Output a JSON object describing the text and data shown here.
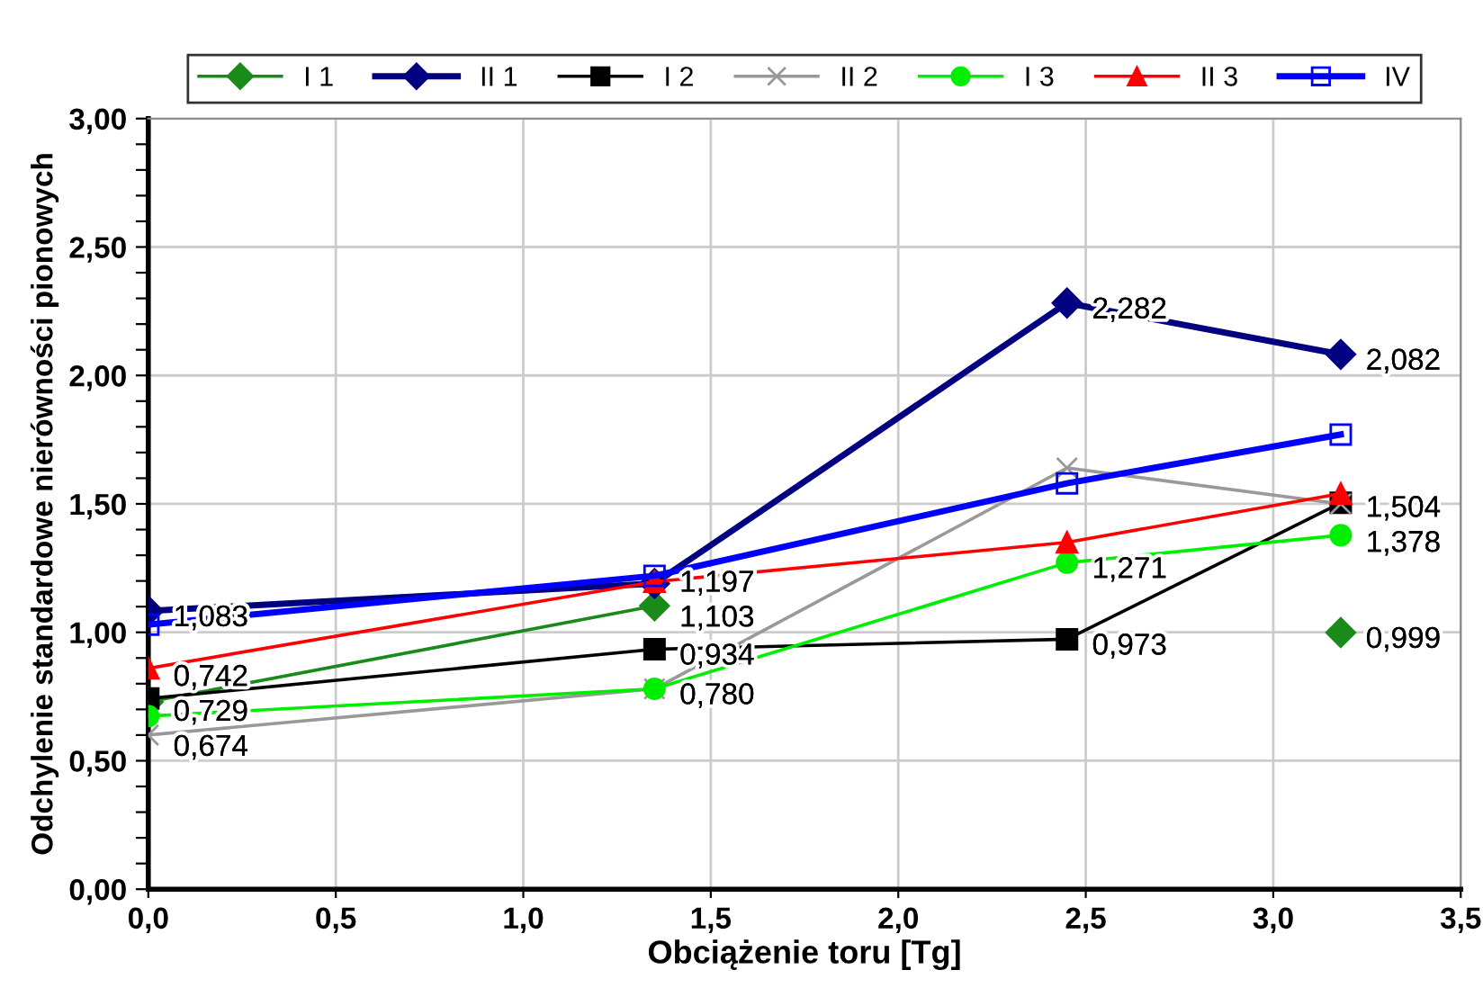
{
  "chart_data": {
    "type": "line",
    "xlabel": "Obciążenie toru [Tg]",
    "ylabel": "Odchylenie standardowe nierówności pionowych",
    "x": [
      0,
      1.35,
      2.45,
      3.18
    ],
    "xlim": [
      0,
      3.5
    ],
    "xticks": [
      {
        "value": 0,
        "label": "0,0"
      },
      {
        "value": 0.5,
        "label": "0,5"
      },
      {
        "value": 1,
        "label": "1,0"
      },
      {
        "value": 1.5,
        "label": "1,5"
      },
      {
        "value": 2,
        "label": "2,0"
      },
      {
        "value": 2.5,
        "label": "2,5"
      },
      {
        "value": 3,
        "label": "3,0"
      },
      {
        "value": 3.5,
        "label": "3,5"
      }
    ],
    "ylim": [
      0,
      3
    ],
    "yticks": [
      {
        "value": 0,
        "label": "0,00"
      },
      {
        "value": 0.1,
        "label": null
      },
      {
        "value": 0.2,
        "label": null
      },
      {
        "value": 0.3,
        "label": null
      },
      {
        "value": 0.4,
        "label": null
      },
      {
        "value": 0.5,
        "label": "0,50"
      },
      {
        "value": 0.6,
        "label": null
      },
      {
        "value": 0.7,
        "label": null
      },
      {
        "value": 0.8,
        "label": null
      },
      {
        "value": 0.9,
        "label": null
      },
      {
        "value": 1,
        "label": "1,00"
      },
      {
        "value": 1.1,
        "label": null
      },
      {
        "value": 1.2,
        "label": null
      },
      {
        "value": 1.3,
        "label": null
      },
      {
        "value": 1.4,
        "label": null
      },
      {
        "value": 1.5,
        "label": "1,50"
      },
      {
        "value": 1.6,
        "label": null
      },
      {
        "value": 1.7,
        "label": null
      },
      {
        "value": 1.8,
        "label": null
      },
      {
        "value": 1.9,
        "label": null
      },
      {
        "value": 2,
        "label": "2,00"
      },
      {
        "value": 2.1,
        "label": null
      },
      {
        "value": 2.2,
        "label": null
      },
      {
        "value": 2.3,
        "label": null
      },
      {
        "value": 2.4,
        "label": null
      },
      {
        "value": 2.5,
        "label": "2,50"
      },
      {
        "value": 2.6,
        "label": null
      },
      {
        "value": 2.7,
        "label": null
      },
      {
        "value": 2.8,
        "label": null
      },
      {
        "value": 2.9,
        "label": null
      },
      {
        "value": 3,
        "label": "3,00"
      }
    ],
    "grid": true,
    "legend": "top",
    "series": [
      {
        "name": "I 1",
        "color": "#1a8a1a",
        "marker": "diamond",
        "values": [
          0.729,
          1.103,
          null,
          0.999
        ],
        "value_labels": [
          "0,729",
          "1,103",
          null,
          "0,999"
        ]
      },
      {
        "name": "II 1",
        "color": "#000080",
        "marker": "diamond",
        "values": [
          1.083,
          1.19,
          2.282,
          2.082
        ],
        "value_labels": [
          "1,083",
          null,
          "2,282",
          "2,082"
        ]
      },
      {
        "name": "I 2",
        "color": "#000000",
        "marker": "square",
        "values": [
          0.742,
          0.934,
          0.973,
          1.504
        ],
        "value_labels": [
          "0,742",
          "0,934",
          "0,973",
          "1,504"
        ]
      },
      {
        "name": "II 2",
        "color": "#999999",
        "marker": "cross",
        "values": [
          0.6,
          0.78,
          1.64,
          1.5
        ]
      },
      {
        "name": "I 3",
        "color": "#00ee00",
        "marker": "circle",
        "values": [
          0.674,
          0.78,
          1.271,
          1.378
        ],
        "value_labels": [
          "0,674",
          "0,780",
          "1,271",
          "1,378"
        ]
      },
      {
        "name": "II 3",
        "color": "#ff0000",
        "marker": "triangle",
        "values": [
          0.86,
          1.197,
          1.35,
          1.54
        ],
        "value_labels": [
          null,
          "1,197",
          null,
          null
        ]
      },
      {
        "name": "IV",
        "color": "#0000ff",
        "marker": "square",
        "values": [
          1.03,
          1.22,
          1.58,
          1.77
        ]
      }
    ]
  }
}
